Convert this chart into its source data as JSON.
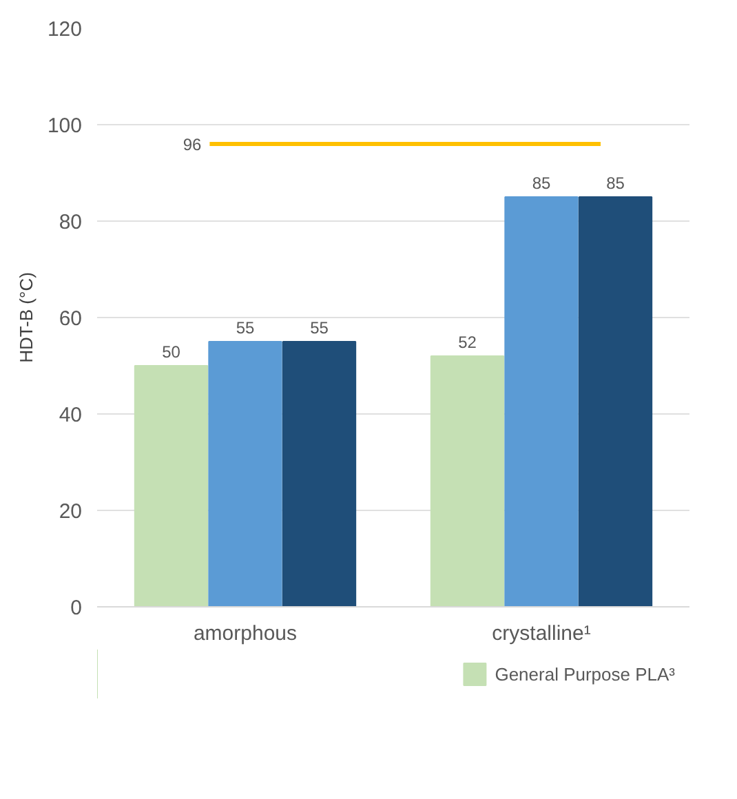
{
  "chart_data": {
    "type": "bar",
    "ylabel": "HDT-B (°C)",
    "categories": [
      "amorphous",
      "crystalline¹"
    ],
    "series": [
      {
        "name": "General Purpose PLA³",
        "color": "#c5e0b4",
        "values": [
          50,
          52
        ]
      },
      {
        "color": "#5b9bd5",
        "values": [
          55,
          85
        ]
      },
      {
        "color": "#1f4e79",
        "values": [
          55,
          85
        ]
      }
    ],
    "ylim": [
      0,
      120
    ],
    "yticks": [
      0,
      20,
      40,
      60,
      80,
      100,
      120
    ],
    "grid": "y",
    "legend": "bottom",
    "data_labels": true,
    "ref_lines": [
      {
        "axis": "y",
        "value": 96,
        "label": "96",
        "color": "#ffc000"
      }
    ]
  }
}
